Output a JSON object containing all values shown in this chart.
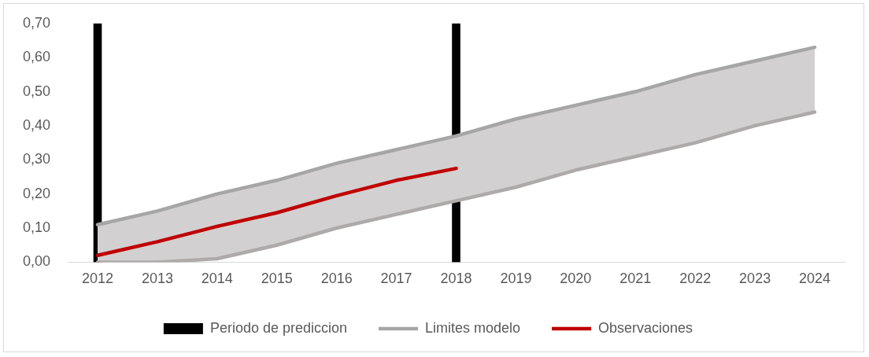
{
  "chart_data": {
    "type": "line",
    "categories": [
      "2012",
      "2013",
      "2014",
      "2015",
      "2016",
      "2017",
      "2018",
      "2019",
      "2020",
      "2021",
      "2022",
      "2023",
      "2024"
    ],
    "series": [
      {
        "name": "Periodo de prediccion",
        "type": "bar",
        "color": "#000000",
        "values": [
          0.7,
          null,
          null,
          null,
          null,
          null,
          0.7,
          null,
          null,
          null,
          null,
          null,
          null
        ]
      },
      {
        "name": "Limites modelo",
        "color": "#a6a6a6",
        "values": [
          0.11,
          0.15,
          0.2,
          0.24,
          0.29,
          0.33,
          0.37,
          0.42,
          0.46,
          0.5,
          0.55,
          0.59,
          0.63
        ]
      },
      {
        "color": "#aeaaaa",
        "values": [
          0.0,
          0.0,
          0.01,
          0.05,
          0.1,
          0.14,
          0.18,
          0.22,
          0.27,
          0.31,
          0.35,
          0.4,
          0.44
        ],
        "lower": [
          0.0,
          0.0,
          0.01,
          0.05,
          0.1,
          0.14,
          0.18,
          0.22,
          0.27,
          0.31,
          0.35,
          0.4,
          0.44
        ],
        "upper": [
          0.11,
          0.15,
          0.2,
          0.24,
          0.29,
          0.33,
          0.37,
          0.42,
          0.46,
          0.5,
          0.55,
          0.59,
          0.63
        ]
      },
      {
        "name": "Observaciones",
        "color": "#c00000",
        "values": [
          0.02,
          0.06,
          0.105,
          0.145,
          0.195,
          0.24,
          0.275,
          null,
          null,
          null,
          null,
          null,
          null
        ]
      }
    ],
    "ylim": [
      0,
      0.7
    ],
    "yticks": [
      {
        "value": 0,
        "label": "0,00"
      },
      {
        "value": 0.1,
        "label": "0,10"
      },
      {
        "value": 0.2,
        "label": "0,20"
      },
      {
        "value": 0.3,
        "label": "0,30"
      },
      {
        "value": 0.4,
        "label": "0,40"
      },
      {
        "value": 0.5,
        "label": "0,50"
      },
      {
        "value": 0.6,
        "label": "0,60"
      },
      {
        "value": 0.7,
        "label": "0,70"
      }
    ],
    "grid": false,
    "legend": "bottom",
    "marker": "none",
    "line_style": "solid"
  }
}
